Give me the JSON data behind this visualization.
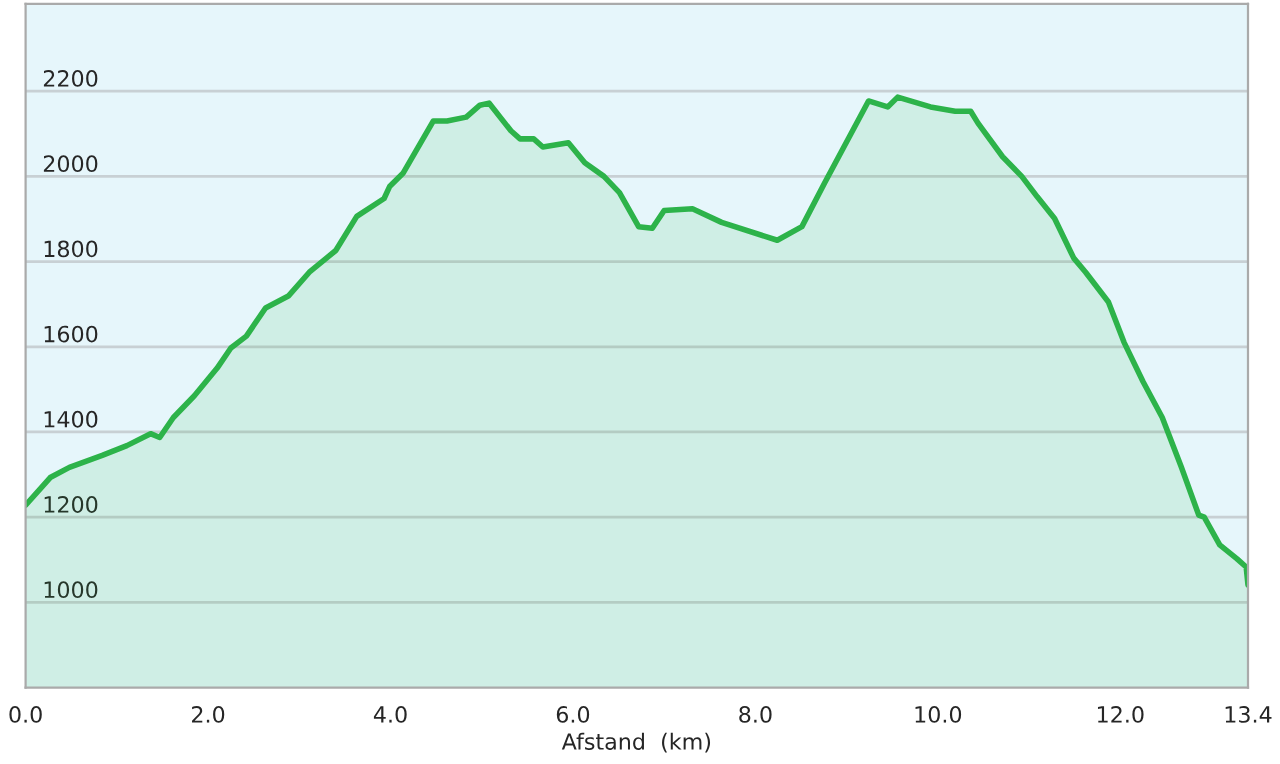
{
  "chart_data": {
    "type": "area",
    "xlabel": "Afstand  (km)",
    "x": [
      0,
      0.27,
      0.48,
      0.84,
      1.11,
      1.37,
      1.47,
      1.62,
      1.85,
      2.1,
      2.25,
      2.42,
      2.63,
      2.88,
      3.11,
      3.4,
      3.63,
      3.93,
      3.99,
      4.14,
      4.47,
      4.62,
      4.83,
      4.98,
      5.08,
      5.32,
      5.42,
      5.57,
      5.67,
      5.95,
      6.13,
      6.34,
      6.51,
      6.72,
      6.87,
      7.0,
      7.31,
      7.63,
      8.24,
      8.51,
      8.76,
      9.24,
      9.45,
      9.56,
      9.92,
      10.19,
      10.36,
      10.44,
      10.71,
      10.92,
      11.09,
      11.28,
      11.49,
      11.62,
      11.87,
      12.04,
      12.25,
      12.46,
      12.67,
      12.86,
      12.92,
      13.09,
      13.28,
      13.38,
      13.4
    ],
    "series": [
      {
        "color": "#2db34a",
        "values": [
          1228,
          1293,
          1317,
          1345,
          1368,
          1396,
          1387,
          1434,
          1485,
          1550,
          1597,
          1625,
          1691,
          1719,
          1775,
          1826,
          1906,
          1948,
          1976,
          2008,
          2130,
          2130,
          2139,
          2167,
          2172,
          2107,
          2088,
          2088,
          2069,
          2079,
          2032,
          2000,
          1962,
          1882,
          1878,
          1920,
          1924,
          1892,
          1850,
          1882,
          1985,
          2177,
          2163,
          2186,
          2163,
          2153,
          2153,
          2125,
          2046,
          2000,
          1952,
          1901,
          1808,
          1775,
          1705,
          1611,
          1518,
          1434,
          1317,
          1205,
          1200,
          1135,
          1102,
          1083,
          1041
        ]
      }
    ],
    "xlim": [
      0,
      13.4
    ],
    "ylim": [
      800,
      2405
    ],
    "xticks": [
      {
        "value": 0,
        "label": "0.0"
      },
      {
        "value": 2,
        "label": "2.0"
      },
      {
        "value": 4,
        "label": "4.0"
      },
      {
        "value": 6,
        "label": "6.0"
      },
      {
        "value": 8,
        "label": "8.0"
      },
      {
        "value": 10,
        "label": "10.0"
      },
      {
        "value": 12,
        "label": "12.0"
      },
      {
        "value": 13.4,
        "label": "13.4"
      }
    ],
    "yticks": [
      1000,
      1200,
      1400,
      1600,
      1800,
      2000,
      2200
    ],
    "grid": "y"
  }
}
